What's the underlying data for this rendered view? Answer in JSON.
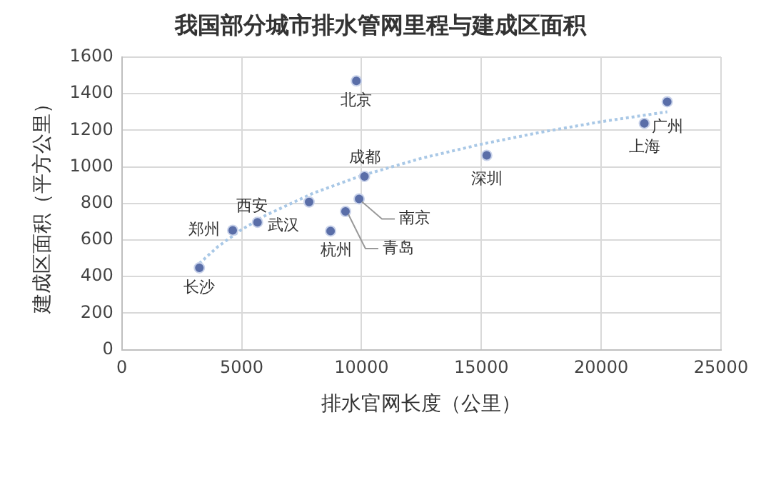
{
  "chart_data": {
    "type": "scatter",
    "title": "我国部分城市排水管网里程与建成区面积",
    "xlabel": "排水官网长度（公里）",
    "ylabel": "建成区面积（平方公里）",
    "series": [
      {
        "type": "scatter",
        "color": "#5a6ea8",
        "marker": "circle",
        "x": [
          3234,
          4626,
          5660,
          7813,
          8709,
          9331,
          9900,
          10124,
          9785,
          15224,
          21800,
          22756
        ],
        "values": [
          448,
          653,
          697,
          808,
          649,
          756,
          825,
          948,
          1470,
          1063,
          1238,
          1356
        ]
      },
      {
        "type": "line",
        "color": "#a9c8e6",
        "marker": "none",
        "line_style": "dotted",
        "x": [
          3234,
          4000,
          5000,
          6000,
          8000,
          10000,
          12500,
          15000,
          17500,
          20000,
          22756
        ],
        "values": [
          472,
          563,
          657,
          735,
          857,
          952,
          1047,
          1124,
          1190,
          1247,
          1301
        ]
      }
    ],
    "annotations": [
      {
        "text": "长沙",
        "x": 3234,
        "y": 448
      },
      {
        "text": "郑州",
        "x": 4626,
        "y": 653
      },
      {
        "text": "西安",
        "x": 5660,
        "y": 697
      },
      {
        "text": "武汉",
        "x": 7813,
        "y": 808
      },
      {
        "text": "杭州",
        "x": 8709,
        "y": 649
      },
      {
        "text": "青岛",
        "x": 9331,
        "y": 756
      },
      {
        "text": "南京",
        "x": 9900,
        "y": 825
      },
      {
        "text": "成都",
        "x": 10124,
        "y": 948
      },
      {
        "text": "北京",
        "x": 9785,
        "y": 1470
      },
      {
        "text": "深圳",
        "x": 15224,
        "y": 1063
      },
      {
        "text": "上海",
        "x": 21800,
        "y": 1238
      },
      {
        "text": "广州",
        "x": 22756,
        "y": 1356
      }
    ],
    "xlim": [
      0,
      25000
    ],
    "xticks": [
      0,
      5000,
      10000,
      15000,
      20000,
      25000
    ],
    "ylim": [
      0,
      1600
    ],
    "yticks": [
      0,
      200,
      400,
      600,
      800,
      1000,
      1200,
      1400,
      1600
    ],
    "grid": true,
    "legend": false
  }
}
